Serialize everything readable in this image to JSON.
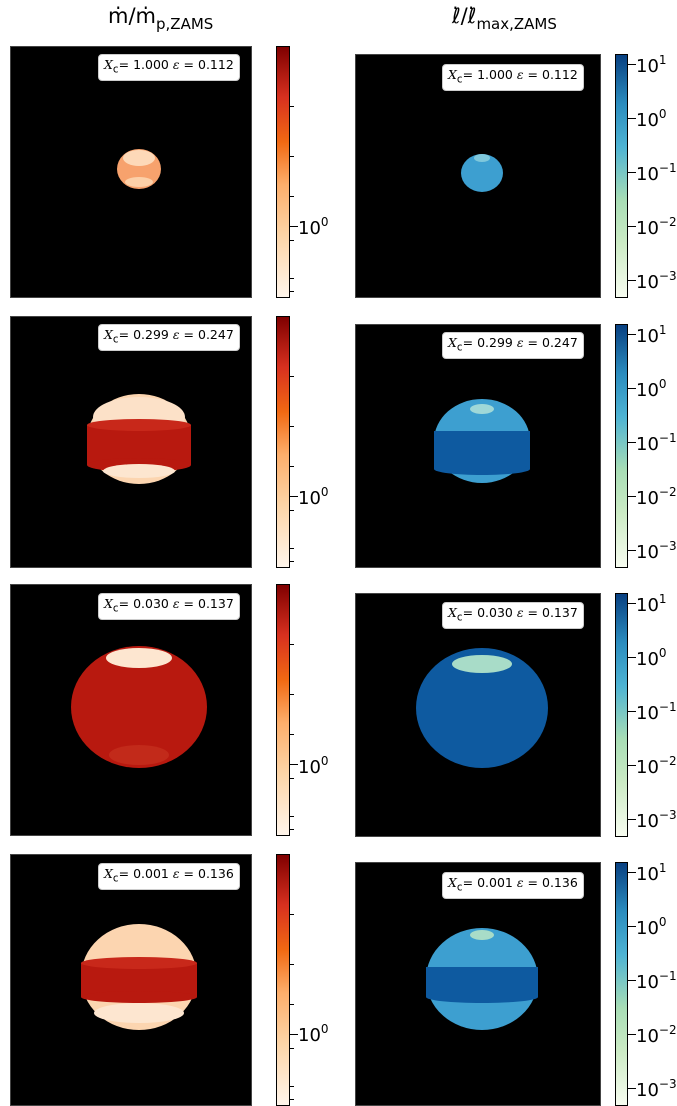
{
  "columns": {
    "left": {
      "title_main": "ṁ/ṁ",
      "title_sub": "p,ZAMS"
    },
    "right": {
      "title_main": "ℓ̇/ℓ̇",
      "title_sub": "max,ZAMS"
    }
  },
  "rows": [
    {
      "xc": "1.000",
      "eps": "0.112"
    },
    {
      "xc": "0.299",
      "eps": "0.247"
    },
    {
      "xc": "0.030",
      "eps": "0.137"
    },
    {
      "xc": "0.001",
      "eps": "0.136"
    }
  ],
  "label_parts": {
    "xc_symbol": "X",
    "xc_sub": "c",
    "eq": "= ",
    "eps_symbol": " ε",
    "eps_eq": " = "
  },
  "colorbars": {
    "left": {
      "colormap": "OrRd",
      "ticks": [
        {
          "base": "10",
          "exp": "0"
        }
      ]
    },
    "right": {
      "colormap": "GnBu",
      "ticks": [
        {
          "base": "10",
          "exp": "1"
        },
        {
          "base": "10",
          "exp": "0"
        },
        {
          "base": "10",
          "exp": "−1"
        },
        {
          "base": "10",
          "exp": "−2"
        },
        {
          "base": "10",
          "exp": "−3"
        }
      ]
    }
  },
  "colors": {
    "left_band": "#b8190f",
    "left_cap": "#fde0c2",
    "right_band": "#0e5aa0",
    "right_cap": "#3d9fd0"
  }
}
